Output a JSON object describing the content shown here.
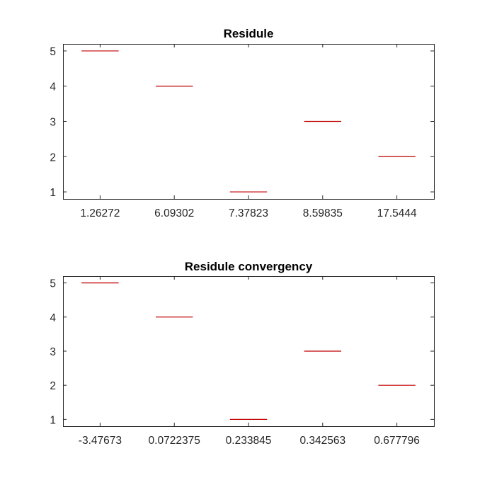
{
  "chart_data": [
    {
      "type": "scatter",
      "marker": "horizontal-line",
      "title": "Residule",
      "xlabel": "",
      "ylabel": "",
      "categories": [
        "1.26272",
        "6.09302",
        "7.37823",
        "8.59835",
        "17.5444"
      ],
      "values": [
        5,
        4,
        1,
        3,
        2
      ],
      "ylim": [
        0.8,
        5.2
      ],
      "yticks": [
        1,
        2,
        3,
        4,
        5
      ],
      "grid": false,
      "color": "#c00000"
    },
    {
      "type": "scatter",
      "marker": "horizontal-line",
      "title": "Residule convergency",
      "xlabel": "",
      "ylabel": "",
      "categories": [
        "-3.47673",
        "0.0722375",
        "0.233845",
        "0.342563",
        "0.677796"
      ],
      "values": [
        5,
        4,
        1,
        3,
        2
      ],
      "ylim": [
        0.8,
        5.2
      ],
      "yticks": [
        1,
        2,
        3,
        4,
        5
      ],
      "grid": false,
      "color": "#c00000"
    }
  ]
}
